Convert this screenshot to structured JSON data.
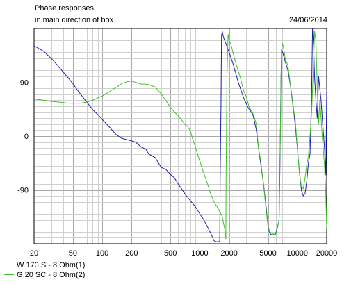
{
  "header": {
    "title": "Phase responses",
    "subtitle": "in main direction of box",
    "date": "24/06/2014"
  },
  "chart_data": {
    "type": "line",
    "title": "Phase responses",
    "subtitle": "in main direction of box",
    "xscale": "log",
    "xlim": [
      20,
      20000
    ],
    "ylim": [
      -180,
      180
    ],
    "xticks": [
      {
        "v": 20,
        "label": "20"
      },
      {
        "v": 50,
        "label": "50"
      },
      {
        "v": 100,
        "label": "100"
      },
      {
        "v": 200,
        "label": "200"
      },
      {
        "v": 500,
        "label": "500"
      },
      {
        "v": 1000,
        "label": "1000"
      },
      {
        "v": 2000,
        "label": "2000"
      },
      {
        "v": 5000,
        "label": "5000"
      },
      {
        "v": 10000,
        "label": "10000"
      },
      {
        "v": 20000,
        "label": "20000"
      }
    ],
    "yticks": [
      {
        "v": 90,
        "label": "90"
      },
      {
        "v": 0,
        "label": "0"
      },
      {
        "v": -90,
        "label": "-90"
      }
    ],
    "grid": true,
    "legend_position": "bottom-left",
    "series": [
      {
        "name": "W 170 S - 8 Ohm(1)",
        "color": "#1c1cb0",
        "points": [
          [
            20,
            151
          ],
          [
            25,
            142
          ],
          [
            30,
            130
          ],
          [
            35,
            118
          ],
          [
            40,
            107
          ],
          [
            45,
            97
          ],
          [
            50,
            88
          ],
          [
            55,
            78
          ],
          [
            60,
            70
          ],
          [
            70,
            56
          ],
          [
            80,
            44
          ],
          [
            90,
            36
          ],
          [
            100,
            28
          ],
          [
            120,
            14
          ],
          [
            140,
            2
          ],
          [
            160,
            -4
          ],
          [
            200,
            -8
          ],
          [
            220,
            -10
          ],
          [
            250,
            -18
          ],
          [
            280,
            -22
          ],
          [
            300,
            -30
          ],
          [
            350,
            -36
          ],
          [
            400,
            -52
          ],
          [
            450,
            -56
          ],
          [
            500,
            -64
          ],
          [
            550,
            -70
          ],
          [
            600,
            -80
          ],
          [
            650,
            -88
          ],
          [
            700,
            -96
          ],
          [
            800,
            -108
          ],
          [
            900,
            -118
          ],
          [
            1000,
            -130
          ],
          [
            1100,
            -140
          ],
          [
            1200,
            -152
          ],
          [
            1300,
            -163
          ],
          [
            1400,
            -175
          ],
          [
            1500,
            -177
          ],
          [
            1600,
            -176
          ],
          [
            1620,
            -60
          ],
          [
            1650,
            50
          ],
          [
            1670,
            168
          ],
          [
            1700,
            175
          ],
          [
            1750,
            165
          ],
          [
            1800,
            160
          ],
          [
            1900,
            150
          ],
          [
            2000,
            140
          ],
          [
            2200,
            120
          ],
          [
            2500,
            88
          ],
          [
            2800,
            65
          ],
          [
            3000,
            54
          ],
          [
            3200,
            45
          ],
          [
            3500,
            36
          ],
          [
            3800,
            10
          ],
          [
            4000,
            -20
          ],
          [
            4200,
            -45
          ],
          [
            4500,
            -80
          ],
          [
            4800,
            -120
          ],
          [
            5000,
            -150
          ],
          [
            5200,
            -162
          ],
          [
            5500,
            -166
          ],
          [
            6000,
            -163
          ],
          [
            6300,
            -150
          ],
          [
            6500,
            -140
          ],
          [
            6600,
            -80
          ],
          [
            6700,
            0
          ],
          [
            6800,
            100
          ],
          [
            6900,
            145
          ],
          [
            7200,
            136
          ],
          [
            7500,
            125
          ],
          [
            8000,
            110
          ],
          [
            8500,
            84
          ],
          [
            9000,
            55
          ],
          [
            9500,
            20
          ],
          [
            10000,
            -20
          ],
          [
            10500,
            -60
          ],
          [
            11000,
            -90
          ],
          [
            11500,
            -100
          ],
          [
            12000,
            -96
          ],
          [
            12500,
            -75
          ],
          [
            13000,
            -45
          ],
          [
            13500,
            -30
          ],
          [
            14000,
            70
          ],
          [
            14300,
            180
          ],
          [
            14700,
            150
          ],
          [
            15000,
            100
          ],
          [
            15500,
            60
          ],
          [
            16000,
            30
          ],
          [
            16500,
            100
          ],
          [
            17000,
            80
          ],
          [
            17500,
            60
          ],
          [
            18000,
            30
          ],
          [
            19000,
            -20
          ],
          [
            19600,
            -65
          ],
          [
            20000,
            80
          ]
        ]
      },
      {
        "name": "G 20 SC - 8 Ohm(2)",
        "color": "#3fc228",
        "points": [
          [
            20,
            62
          ],
          [
            25,
            60
          ],
          [
            30,
            58
          ],
          [
            35,
            57
          ],
          [
            40,
            56
          ],
          [
            45,
            55
          ],
          [
            50,
            55
          ],
          [
            60,
            55
          ],
          [
            70,
            57
          ],
          [
            80,
            60
          ],
          [
            90,
            64
          ],
          [
            100,
            67
          ],
          [
            120,
            75
          ],
          [
            140,
            82
          ],
          [
            160,
            88
          ],
          [
            180,
            91
          ],
          [
            200,
            92
          ],
          [
            220,
            90
          ],
          [
            250,
            87
          ],
          [
            280,
            87
          ],
          [
            300,
            86
          ],
          [
            350,
            82
          ],
          [
            400,
            71
          ],
          [
            450,
            59
          ],
          [
            500,
            48
          ],
          [
            550,
            40
          ],
          [
            600,
            34
          ],
          [
            650,
            27
          ],
          [
            700,
            20
          ],
          [
            750,
            16
          ],
          [
            800,
            9
          ],
          [
            850,
            -6
          ],
          [
            900,
            -18
          ],
          [
            1000,
            -42
          ],
          [
            1100,
            -62
          ],
          [
            1200,
            -80
          ],
          [
            1300,
            -98
          ],
          [
            1400,
            -110
          ],
          [
            1500,
            -118
          ],
          [
            1600,
            -126
          ],
          [
            1700,
            -135
          ],
          [
            1800,
            -155
          ],
          [
            1850,
            -172
          ],
          [
            1860,
            -80
          ],
          [
            1880,
            20
          ],
          [
            1900,
            100
          ],
          [
            1950,
            170
          ],
          [
            2000,
            160
          ],
          [
            2100,
            152
          ],
          [
            2200,
            138
          ],
          [
            2400,
            116
          ],
          [
            2600,
            98
          ],
          [
            2800,
            77
          ],
          [
            3000,
            66
          ],
          [
            3200,
            49
          ],
          [
            3500,
            38
          ],
          [
            3800,
            20
          ],
          [
            4000,
            -20
          ],
          [
            4200,
            -40
          ],
          [
            4500,
            -82
          ],
          [
            4800,
            -125
          ],
          [
            5000,
            -150
          ],
          [
            5200,
            -160
          ],
          [
            5500,
            -163
          ],
          [
            6000,
            -165
          ],
          [
            6300,
            -152
          ],
          [
            6500,
            -140
          ],
          [
            6600,
            -60
          ],
          [
            6750,
            40
          ],
          [
            6800,
            100
          ],
          [
            6900,
            135
          ],
          [
            7000,
            155
          ],
          [
            7200,
            150
          ],
          [
            7500,
            130
          ],
          [
            8000,
            118
          ],
          [
            8500,
            85
          ],
          [
            9000,
            50
          ],
          [
            9500,
            30
          ],
          [
            10000,
            -20
          ],
          [
            10500,
            -60
          ],
          [
            11000,
            -85
          ],
          [
            11500,
            -88
          ],
          [
            12000,
            -70
          ],
          [
            12500,
            -47
          ],
          [
            13000,
            -35
          ],
          [
            13500,
            0
          ],
          [
            14000,
            40
          ],
          [
            14500,
            100
          ],
          [
            15000,
            175
          ],
          [
            15500,
            160
          ],
          [
            16000,
            80
          ],
          [
            16500,
            20
          ],
          [
            17000,
            60
          ],
          [
            17500,
            30
          ],
          [
            18000,
            0
          ],
          [
            19000,
            -50
          ],
          [
            19600,
            -100
          ],
          [
            20000,
            -155
          ]
        ]
      }
    ]
  }
}
